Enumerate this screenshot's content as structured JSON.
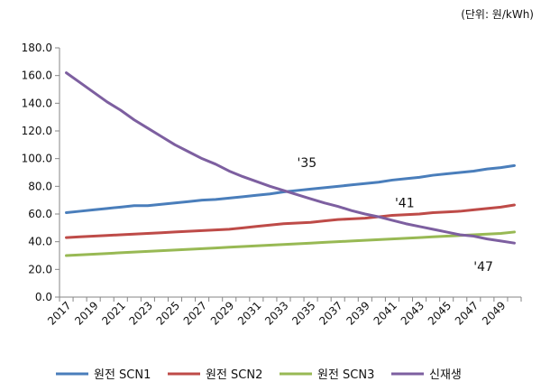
{
  "unit_label": "(단위: 원/kWh)",
  "chart_data": {
    "type": "line",
    "title": "",
    "xlabel": "",
    "ylabel": "",
    "ylim": [
      0,
      180
    ],
    "yticks": [
      0,
      20,
      40,
      60,
      80,
      100,
      120,
      140,
      160,
      180
    ],
    "ytick_labels": [
      "0.0",
      "20.0",
      "40.0",
      "60.0",
      "80.0",
      "100.0",
      "120.0",
      "140.0",
      "160.0",
      "180.0"
    ],
    "x": [
      2017,
      2018,
      2019,
      2020,
      2021,
      2022,
      2023,
      2024,
      2025,
      2026,
      2027,
      2028,
      2029,
      2030,
      2031,
      2032,
      2033,
      2034,
      2035,
      2036,
      2037,
      2038,
      2039,
      2040,
      2041,
      2042,
      2043,
      2044,
      2045,
      2046,
      2047,
      2048,
      2049,
      2050
    ],
    "xtick_labels": [
      "2017",
      "2019",
      "2021",
      "2023",
      "2025",
      "2027",
      "2029",
      "2031",
      "2033",
      "2035",
      "2037",
      "2039",
      "2041",
      "2043",
      "2045",
      "2047",
      "2049"
    ],
    "grid": false,
    "legend_position": "bottom",
    "series": [
      {
        "name": "원전 SCN1",
        "color": "#4a7ebb",
        "values": [
          61,
          62,
          63,
          64,
          65,
          66,
          66,
          67,
          68,
          69,
          70,
          70.5,
          71.5,
          72.5,
          73.5,
          74.5,
          76,
          77,
          78,
          79,
          80,
          81,
          82,
          83,
          84.5,
          85.5,
          86.5,
          88,
          89,
          90,
          91,
          92.5,
          93.5,
          95
        ]
      },
      {
        "name": "원전 SCN2",
        "color": "#be4b48",
        "values": [
          43,
          43.5,
          44,
          44.5,
          45,
          45.5,
          46,
          46.5,
          47,
          47.5,
          48,
          48.5,
          49,
          50,
          51,
          52,
          53,
          53.5,
          54,
          55,
          56,
          56.5,
          57,
          58,
          59,
          59.5,
          60,
          61,
          61.5,
          62,
          63,
          64,
          65,
          66.5
        ]
      },
      {
        "name": "원전 SCN3",
        "color": "#98b954",
        "values": [
          30,
          30.5,
          31,
          31.5,
          32,
          32.5,
          33,
          33.5,
          34,
          34.5,
          35,
          35.5,
          36,
          36.5,
          37,
          37.5,
          38,
          38.5,
          39,
          39.5,
          40,
          40.5,
          41,
          41.5,
          42,
          42.5,
          43,
          43.5,
          44,
          44.5,
          45,
          45.5,
          46,
          47
        ]
      },
      {
        "name": "신재생",
        "color": "#7d5fa0",
        "values": [
          162,
          155,
          148,
          141,
          135,
          128,
          122,
          116,
          110,
          105,
          100,
          96,
          91,
          87,
          83.5,
          80,
          77,
          74,
          71,
          68,
          65.5,
          62.5,
          60,
          58,
          55.5,
          53,
          51,
          49,
          47,
          45,
          44,
          42,
          40.5,
          39
        ]
      }
    ],
    "annotations": [
      {
        "text": "'35",
        "x": 2034,
        "y": 94
      },
      {
        "text": "'41",
        "x": 2041.2,
        "y": 65
      },
      {
        "text": "'47",
        "x": 2047,
        "y": 19
      }
    ]
  }
}
